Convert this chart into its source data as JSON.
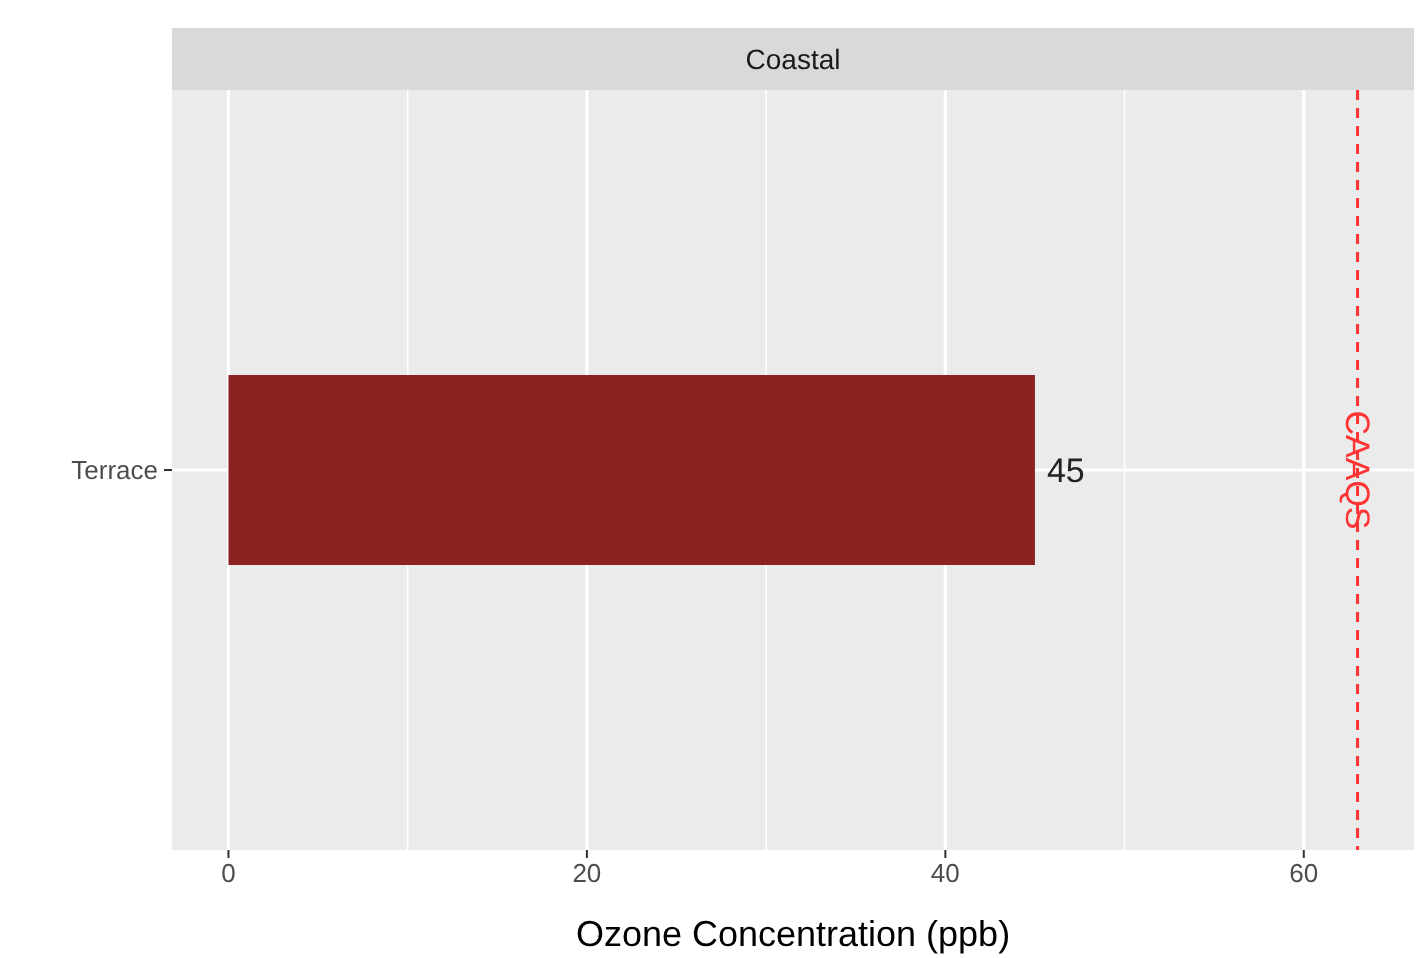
{
  "chart_data": {
    "type": "bar",
    "orientation": "horizontal",
    "title": "Coastal",
    "xlabel": "Ozone Concentration (ppb)",
    "categories": [
      "Terrace"
    ],
    "values": [
      45
    ],
    "color": "#8b2323",
    "data_labels": true,
    "xlim": [
      -3.15,
      66.15
    ],
    "xticks": [
      0,
      {
        "value": 10,
        "label": null
      },
      20,
      {
        "value": 30,
        "label": null
      },
      40,
      {
        "value": 50,
        "label": null
      },
      60
    ],
    "grid": true,
    "ref_lines": [
      {
        "axis": "x",
        "value": 63,
        "label": "CAAQS",
        "color": "#ff3333",
        "line_style": "dashed"
      }
    ]
  }
}
